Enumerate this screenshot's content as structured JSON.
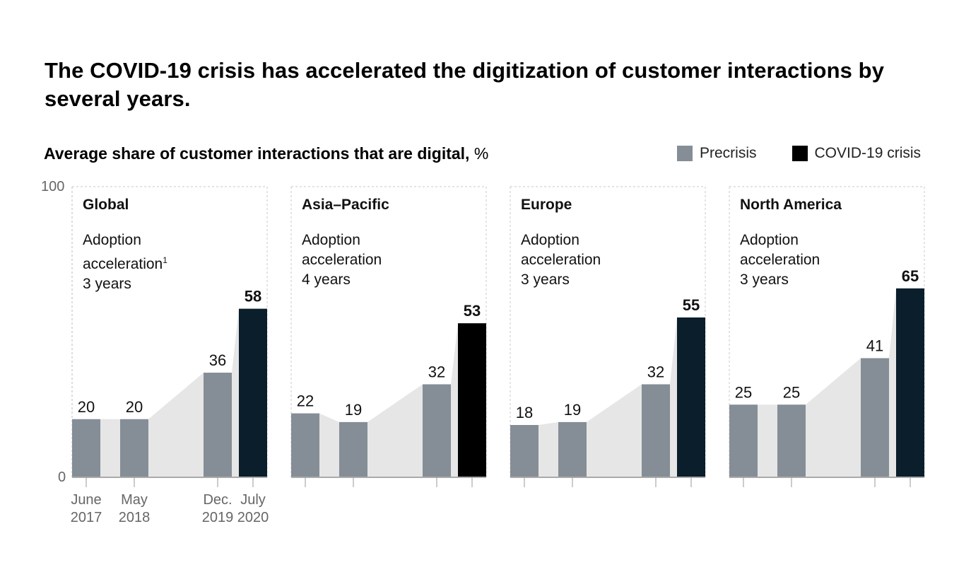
{
  "headline": "The COVID-19 crisis has accelerated the digitization of customer interactions by several years.",
  "subtitle": {
    "main": "Average share of customer interactions that are digital,",
    "unit": "%"
  },
  "legend": {
    "precrisis": "Precrisis",
    "covid": "COVID-19 crisis"
  },
  "colors": {
    "precrisis": "#858e96",
    "covid_dark_navy": "#0a1e2c",
    "covid_black": "#000000",
    "area": "#e6e6e6"
  },
  "chart_data": {
    "type": "bar",
    "y_axis": {
      "min_label": "0",
      "max_label": "100",
      "ylim": [
        0,
        100
      ]
    },
    "x_labels": [
      {
        "line1": "June",
        "line2": "2017"
      },
      {
        "line1": "May",
        "line2": "2018"
      },
      {
        "line1": "Dec.",
        "line2": "2019"
      },
      {
        "line1": "July",
        "line2": "2020"
      }
    ],
    "panels": [
      {
        "title": "Global",
        "accel_label1": "Adoption",
        "accel_label2": "acceleration",
        "footnote": "1",
        "accel_value": "3 years",
        "values": [
          20,
          20,
          36,
          58
        ]
      },
      {
        "title": "Asia–Pacific",
        "accel_label1": "Adoption",
        "accel_label2": "acceleration",
        "accel_value": "4 years",
        "values": [
          22,
          19,
          32,
          53
        ]
      },
      {
        "title": "Europe",
        "accel_label1": "Adoption",
        "accel_label2": "acceleration",
        "accel_value": "3 years",
        "values": [
          18,
          19,
          32,
          55
        ]
      },
      {
        "title": "North America",
        "accel_label1": "Adoption",
        "accel_label2": "acceleration",
        "accel_value": "3 years",
        "values": [
          25,
          25,
          41,
          65
        ]
      }
    ]
  }
}
